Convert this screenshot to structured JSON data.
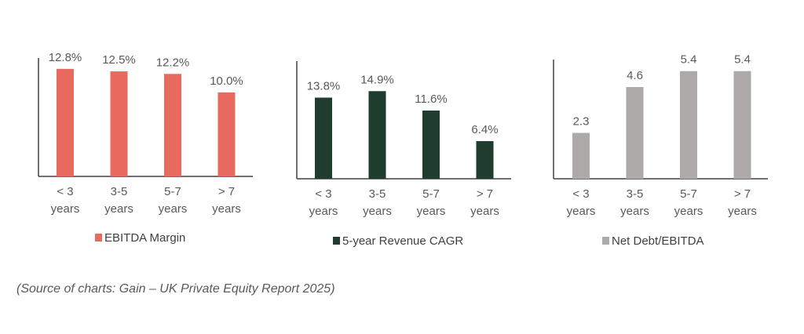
{
  "chart_data": [
    {
      "type": "bar",
      "title": "",
      "categories": [
        [
          "< 3",
          "years"
        ],
        [
          "3-5",
          "years"
        ],
        [
          "5-7",
          "years"
        ],
        [
          "> 7",
          "years"
        ]
      ],
      "series": [
        {
          "name": "EBITDA Margin",
          "values": [
            12.8,
            12.5,
            12.2,
            10.0
          ],
          "labels": [
            "12.8%",
            "12.5%",
            "12.2%",
            "10.0%"
          ],
          "color": "#E8695E"
        }
      ],
      "xlabel": "",
      "ylabel": "",
      "ylim": [
        0,
        14
      ],
      "grid": false,
      "legend": "bottom"
    },
    {
      "type": "bar",
      "title": "",
      "categories": [
        [
          "< 3",
          "years"
        ],
        [
          "3-5",
          "years"
        ],
        [
          "5-7",
          "years"
        ],
        [
          "> 7",
          "years"
        ]
      ],
      "series": [
        {
          "name": "5-year Revenue CAGR",
          "values": [
            13.8,
            14.9,
            11.6,
            6.4
          ],
          "labels": [
            "13.8%",
            "14.9%",
            "11.6%",
            "6.4%"
          ],
          "color": "#1F3D2E"
        }
      ],
      "xlabel": "",
      "ylabel": "",
      "ylim": [
        0,
        20
      ],
      "grid": false,
      "legend": "bottom"
    },
    {
      "type": "bar",
      "title": "",
      "categories": [
        [
          "< 3",
          "years"
        ],
        [
          "3-5",
          "years"
        ],
        [
          "5-7",
          "years"
        ],
        [
          "> 7",
          "years"
        ]
      ],
      "series": [
        {
          "name": "Net Debt/EBITDA",
          "values": [
            2.3,
            4.6,
            5.4,
            5.4
          ],
          "labels": [
            "2.3",
            "4.6",
            "5.4",
            "5.4"
          ],
          "color": "#ADA9A8"
        }
      ],
      "xlabel": "",
      "ylabel": "",
      "ylim": [
        0,
        5.9
      ],
      "grid": false,
      "legend": "bottom"
    }
  ],
  "source": "(Source of charts: Gain – UK Private Equity Report 2025)"
}
